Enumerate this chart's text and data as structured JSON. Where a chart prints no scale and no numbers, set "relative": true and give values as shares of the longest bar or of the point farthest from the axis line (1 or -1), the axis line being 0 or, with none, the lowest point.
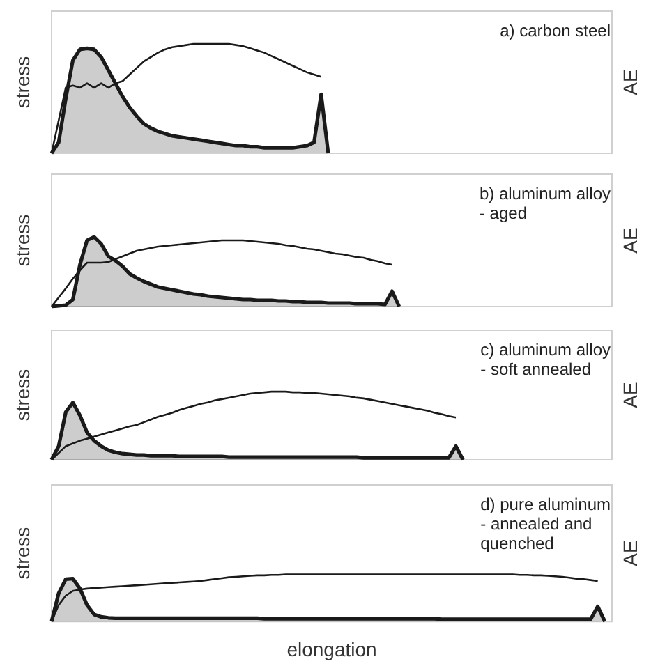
{
  "chart_data": [
    {
      "type": "line",
      "title": "a) carbon steel",
      "ylabel": "stress",
      "y2label": "AE",
      "relative": true,
      "grid": false,
      "categories": [
        null,
        null,
        null,
        null,
        null,
        null,
        null,
        null,
        null,
        null,
        null,
        null,
        null,
        null,
        null,
        null,
        null,
        null,
        null,
        null,
        null,
        null,
        null,
        null,
        null,
        null,
        null,
        null,
        null,
        null,
        null,
        null,
        null,
        null,
        null,
        null,
        null,
        null,
        null,
        null,
        null,
        null,
        null,
        null,
        null,
        null,
        null,
        null,
        null,
        null,
        null,
        null,
        null,
        null,
        null,
        null,
        null,
        null,
        null,
        null,
        null,
        null,
        null,
        null,
        null,
        null,
        null,
        null,
        null,
        null,
        null,
        null,
        null,
        null,
        null,
        null,
        null,
        null,
        null,
        null
      ],
      "series": [
        {
          "type": "area",
          "color": "#1a1a1a",
          "values": [
            0,
            0.1,
            0.5,
            0.85,
            0.95,
            0.96,
            0.95,
            0.88,
            0.76,
            0.64,
            0.52,
            0.42,
            0.34,
            0.27,
            0.23,
            0.2,
            0.18,
            0.16,
            0.15,
            0.14,
            0.13,
            0.12,
            0.11,
            0.1,
            0.09,
            0.08,
            0.07,
            0.07,
            0.06,
            0.06,
            0.05,
            0.05,
            0.05,
            0.05,
            0.05,
            0.06,
            0.07,
            0.1,
            0.54,
            0,
            null,
            null,
            null,
            null,
            null,
            null,
            null,
            null,
            null,
            null,
            null,
            null,
            null,
            null,
            null,
            null,
            null,
            null,
            null,
            null,
            null,
            null,
            null,
            null,
            null,
            null,
            null,
            null,
            null,
            null,
            null,
            null,
            null,
            null,
            null,
            null,
            null,
            null,
            null,
            null
          ]
        },
        {
          "type": "line",
          "color": "#1a1a1a",
          "values": [
            0,
            0.3,
            0.6,
            0.62,
            0.6,
            0.64,
            0.6,
            0.64,
            0.6,
            0.64,
            0.66,
            0.72,
            0.78,
            0.84,
            0.88,
            0.92,
            0.95,
            0.97,
            0.98,
            0.99,
            1,
            1,
            1,
            1,
            1,
            1,
            0.99,
            0.98,
            0.96,
            0.94,
            0.92,
            0.89,
            0.86,
            0.83,
            0.8,
            0.77,
            0.74,
            0.72,
            0.7,
            null,
            null,
            null,
            null,
            null,
            null,
            null,
            null,
            null,
            null,
            null,
            null,
            null,
            null,
            null,
            null,
            null,
            null,
            null,
            null,
            null,
            null,
            null,
            null,
            null,
            null,
            null,
            null,
            null,
            null,
            null,
            null,
            null,
            null,
            null,
            null,
            null,
            null,
            null,
            null,
            null
          ]
        }
      ]
    },
    {
      "type": "line",
      "title": "b) aluminum alloy\n- aged",
      "ylabel": "stress",
      "y2label": "AE",
      "relative": true,
      "grid": false,
      "categories": [
        null,
        null,
        null,
        null,
        null,
        null,
        null,
        null,
        null,
        null,
        null,
        null,
        null,
        null,
        null,
        null,
        null,
        null,
        null,
        null,
        null,
        null,
        null,
        null,
        null,
        null,
        null,
        null,
        null,
        null,
        null,
        null,
        null,
        null,
        null,
        null,
        null,
        null,
        null,
        null,
        null,
        null,
        null,
        null,
        null,
        null,
        null,
        null,
        null,
        null,
        null,
        null,
        null,
        null,
        null,
        null,
        null,
        null,
        null,
        null,
        null,
        null,
        null,
        null,
        null,
        null,
        null,
        null,
        null,
        null,
        null,
        null,
        null,
        null,
        null,
        null,
        null,
        null,
        null,
        null
      ],
      "series": [
        {
          "type": "area",
          "color": "#1a1a1a",
          "values": [
            0,
            0.01,
            0.02,
            0.1,
            0.6,
            0.95,
            1,
            0.9,
            0.72,
            0.66,
            0.58,
            0.47,
            0.41,
            0.36,
            0.32,
            0.28,
            0.26,
            0.24,
            0.22,
            0.2,
            0.18,
            0.17,
            0.15,
            0.14,
            0.13,
            0.12,
            0.11,
            0.1,
            0.1,
            0.09,
            0.09,
            0.09,
            0.08,
            0.08,
            0.07,
            0.07,
            0.06,
            0.06,
            0.06,
            0.05,
            0.05,
            0.05,
            0.05,
            0.04,
            0.04,
            0.04,
            0.04,
            0.03,
            0.22,
            0,
            null,
            null,
            null,
            null,
            null,
            null,
            null,
            null,
            null,
            null,
            null,
            null,
            null,
            null,
            null,
            null,
            null,
            null,
            null,
            null,
            null,
            null,
            null,
            null,
            null,
            null,
            null,
            null,
            null,
            null
          ]
        },
        {
          "type": "line",
          "color": "#1a1a1a",
          "values": [
            0,
            0.13,
            0.26,
            0.4,
            0.52,
            0.63,
            0.63,
            0.63,
            0.64,
            0.68,
            0.72,
            0.76,
            0.8,
            0.82,
            0.84,
            0.86,
            0.87,
            0.88,
            0.89,
            0.9,
            0.91,
            0.92,
            0.93,
            0.94,
            0.95,
            0.95,
            0.95,
            0.95,
            0.94,
            0.93,
            0.92,
            0.91,
            0.9,
            0.88,
            0.87,
            0.85,
            0.83,
            0.82,
            0.8,
            0.78,
            0.76,
            0.75,
            0.73,
            0.71,
            0.7,
            0.67,
            0.65,
            0.62,
            0.6,
            null,
            null,
            null,
            null,
            null,
            null,
            null,
            null,
            null,
            null,
            null,
            null,
            null,
            null,
            null,
            null,
            null,
            null,
            null,
            null,
            null,
            null,
            null,
            null,
            null,
            null,
            null,
            null,
            null,
            null,
            null
          ]
        }
      ]
    },
    {
      "type": "line",
      "title": "c) aluminum alloy\n- soft annealed",
      "ylabel": "stress",
      "y2label": "AE",
      "relative": true,
      "grid": false,
      "categories": [
        null,
        null,
        null,
        null,
        null,
        null,
        null,
        null,
        null,
        null,
        null,
        null,
        null,
        null,
        null,
        null,
        null,
        null,
        null,
        null,
        null,
        null,
        null,
        null,
        null,
        null,
        null,
        null,
        null,
        null,
        null,
        null,
        null,
        null,
        null,
        null,
        null,
        null,
        null,
        null,
        null,
        null,
        null,
        null,
        null,
        null,
        null,
        null,
        null,
        null,
        null,
        null,
        null,
        null,
        null,
        null,
        null,
        null,
        null,
        null,
        null,
        null,
        null,
        null,
        null,
        null,
        null,
        null,
        null,
        null,
        null,
        null,
        null,
        null,
        null,
        null,
        null,
        null,
        null,
        null
      ],
      "series": [
        {
          "type": "area",
          "color": "#1a1a1a",
          "values": [
            0,
            0.2,
            0.7,
            0.84,
            0.65,
            0.4,
            0.28,
            0.2,
            0.14,
            0.11,
            0.09,
            0.08,
            0.07,
            0.07,
            0.06,
            0.06,
            0.06,
            0.06,
            0.05,
            0.05,
            0.05,
            0.05,
            0.05,
            0.05,
            0.05,
            0.04,
            0.04,
            0.04,
            0.04,
            0.04,
            0.04,
            0.04,
            0.04,
            0.04,
            0.04,
            0.04,
            0.04,
            0.04,
            0.04,
            0.04,
            0.04,
            0.04,
            0.04,
            0.04,
            0.03,
            0.03,
            0.03,
            0.03,
            0.03,
            0.03,
            0.03,
            0.03,
            0.03,
            0.03,
            0.03,
            0.03,
            0.03,
            0.2,
            0,
            null,
            null,
            null,
            null,
            null,
            null,
            null,
            null,
            null,
            null,
            null,
            null,
            null,
            null,
            null,
            null,
            null,
            null,
            null,
            null,
            null
          ]
        },
        {
          "type": "line",
          "color": "#1a1a1a",
          "values": [
            0,
            0.1,
            0.2,
            0.24,
            0.28,
            0.31,
            0.34,
            0.37,
            0.4,
            0.43,
            0.46,
            0.49,
            0.51,
            0.55,
            0.59,
            0.63,
            0.66,
            0.69,
            0.73,
            0.76,
            0.79,
            0.82,
            0.84,
            0.87,
            0.89,
            0.91,
            0.93,
            0.95,
            0.97,
            0.98,
            0.99,
            1,
            1,
            1,
            0.99,
            0.99,
            0.98,
            0.98,
            0.97,
            0.96,
            0.95,
            0.94,
            0.93,
            0.91,
            0.9,
            0.88,
            0.86,
            0.84,
            0.82,
            0.8,
            0.78,
            0.76,
            0.74,
            0.72,
            0.69,
            0.67,
            0.64,
            0.62,
            null,
            null,
            null,
            null,
            null,
            null,
            null,
            null,
            null,
            null,
            null,
            null,
            null,
            null,
            null,
            null,
            null,
            null,
            null,
            null,
            null,
            null
          ]
        }
      ]
    },
    {
      "type": "line",
      "title": "d) pure aluminum\n- annealed and\nquenched",
      "xlabel": "elongation",
      "ylabel": "stress",
      "y2label": "AE",
      "relative": true,
      "grid": false,
      "categories": [
        null,
        null,
        null,
        null,
        null,
        null,
        null,
        null,
        null,
        null,
        null,
        null,
        null,
        null,
        null,
        null,
        null,
        null,
        null,
        null,
        null,
        null,
        null,
        null,
        null,
        null,
        null,
        null,
        null,
        null,
        null,
        null,
        null,
        null,
        null,
        null,
        null,
        null,
        null,
        null,
        null,
        null,
        null,
        null,
        null,
        null,
        null,
        null,
        null,
        null,
        null,
        null,
        null,
        null,
        null,
        null,
        null,
        null,
        null,
        null,
        null,
        null,
        null,
        null,
        null,
        null,
        null,
        null,
        null,
        null,
        null,
        null,
        null,
        null,
        null,
        null,
        null,
        null,
        null,
        null
      ],
      "series": [
        {
          "type": "area",
          "color": "#1a1a1a",
          "values": [
            0,
            0.6,
            0.9,
            0.91,
            0.7,
            0.35,
            0.15,
            0.1,
            0.08,
            0.07,
            0.07,
            0.07,
            0.07,
            0.07,
            0.07,
            0.07,
            0.07,
            0.07,
            0.07,
            0.07,
            0.07,
            0.07,
            0.07,
            0.07,
            0.07,
            0.07,
            0.07,
            0.07,
            0.07,
            0.07,
            0.06,
            0.06,
            0.06,
            0.06,
            0.06,
            0.06,
            0.06,
            0.06,
            0.06,
            0.06,
            0.06,
            0.06,
            0.06,
            0.06,
            0.06,
            0.06,
            0.06,
            0.06,
            0.06,
            0.06,
            0.06,
            0.06,
            0.06,
            0.06,
            0.06,
            0.05,
            0.05,
            0.05,
            0.05,
            0.05,
            0.05,
            0.05,
            0.05,
            0.05,
            0.05,
            0.05,
            0.05,
            0.05,
            0.05,
            0.05,
            0.05,
            0.05,
            0.05,
            0.05,
            0.05,
            0.05,
            0.05,
            0.32,
            0,
            null
          ]
        },
        {
          "type": "line",
          "color": "#1a1a1a",
          "values": [
            0,
            0.35,
            0.55,
            0.65,
            0.68,
            0.7,
            0.71,
            0.72,
            0.73,
            0.74,
            0.75,
            0.76,
            0.77,
            0.78,
            0.79,
            0.8,
            0.81,
            0.82,
            0.83,
            0.84,
            0.85,
            0.86,
            0.88,
            0.9,
            0.92,
            0.94,
            0.95,
            0.96,
            0.97,
            0.98,
            0.98,
            0.99,
            0.99,
            1,
            1,
            1,
            1,
            1,
            1,
            1,
            1,
            1,
            1,
            1,
            1,
            1,
            1,
            1,
            1,
            1,
            1,
            1,
            1,
            1,
            1,
            1,
            1,
            1,
            1,
            1,
            1,
            1,
            1,
            1,
            1,
            1,
            0.99,
            0.99,
            0.98,
            0.98,
            0.97,
            0.96,
            0.95,
            0.93,
            0.91,
            0.9,
            0.88,
            0.86,
            null,
            null
          ]
        }
      ]
    }
  ]
}
